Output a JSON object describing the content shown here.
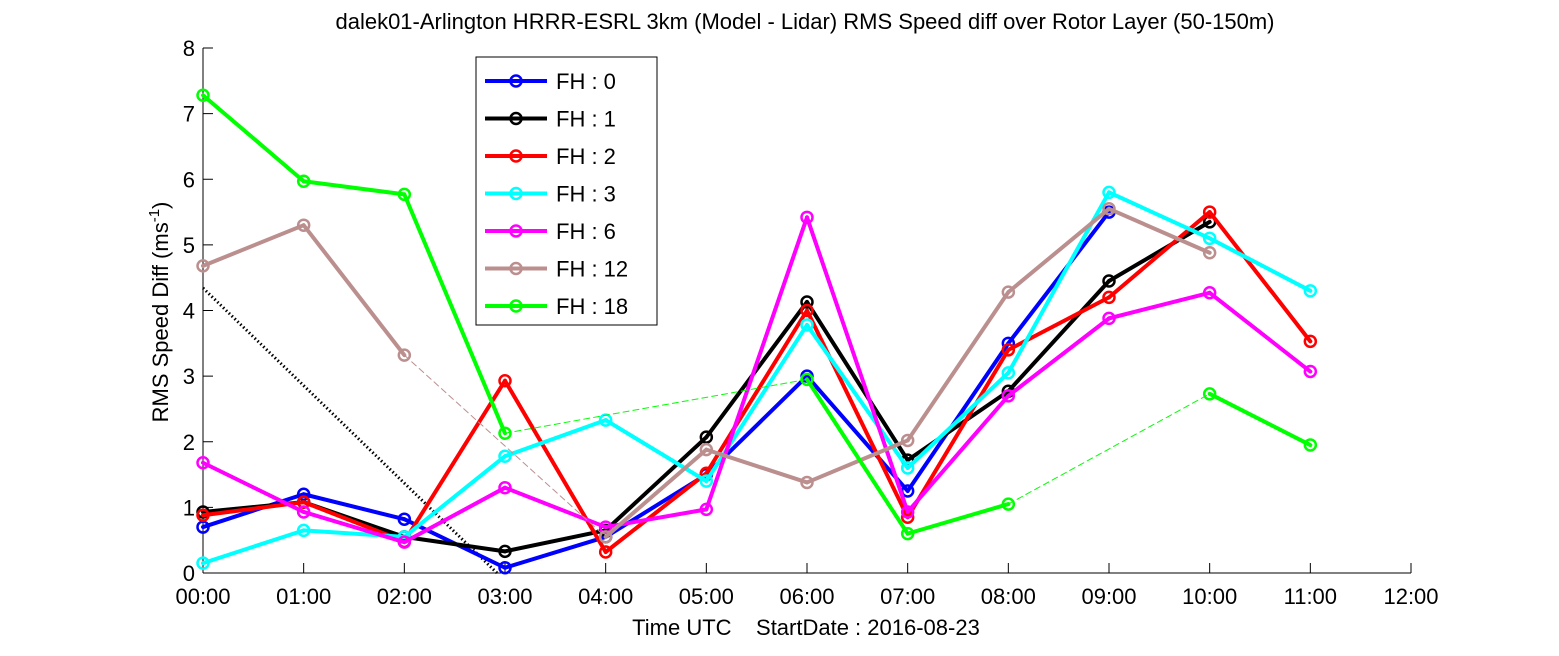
{
  "chart_data": {
    "type": "line",
    "title": "dalek01-Arlington HRRR-ESRL 3km (Model - Lidar) RMS Speed diff over Rotor Layer (50-150m)",
    "xlabel": "Time UTC    StartDate : 2016-08-23",
    "ylabel_main": "RMS Speed Diff (ms",
    "ylabel_sup": "-1",
    "ylabel_close": ")",
    "xlim": [
      0,
      12
    ],
    "ylim": [
      0,
      8
    ],
    "x_ticks": [
      0,
      1,
      2,
      3,
      4,
      5,
      6,
      7,
      8,
      9,
      10,
      11,
      12
    ],
    "x_tick_labels": [
      "00:00",
      "01:00",
      "02:00",
      "03:00",
      "04:00",
      "05:00",
      "06:00",
      "07:00",
      "08:00",
      "09:00",
      "10:00",
      "11:00",
      "12:00"
    ],
    "y_ticks": [
      0,
      1,
      2,
      3,
      4,
      5,
      6,
      7,
      8
    ],
    "y_tick_labels": [
      "0",
      "1",
      "2",
      "3",
      "4",
      "5",
      "6",
      "7",
      "8"
    ],
    "grid": false,
    "legend_position": "top-left (inside axes)",
    "series": [
      {
        "name": "FH : 0",
        "color": "#0000ff",
        "x": [
          0,
          1,
          2,
          3,
          4,
          5,
          6,
          7,
          8,
          9
        ],
        "y": [
          0.7,
          1.2,
          0.82,
          0.08,
          0.55,
          1.5,
          3.0,
          1.25,
          3.5,
          5.5
        ]
      },
      {
        "name": "FH : 1",
        "color": "#000000",
        "x": [
          0,
          1,
          2,
          3,
          4,
          5,
          6,
          7,
          8,
          9,
          10
        ],
        "y": [
          0.93,
          1.08,
          0.55,
          0.33,
          0.65,
          2.07,
          4.13,
          1.72,
          2.77,
          4.45,
          5.35
        ]
      },
      {
        "name": "FH : 2",
        "color": "#ff0000",
        "x": [
          0,
          1,
          2,
          3,
          4,
          5,
          6,
          7,
          8,
          9,
          10,
          11
        ],
        "y": [
          0.88,
          1.08,
          0.48,
          2.93,
          0.32,
          1.52,
          4.0,
          0.85,
          3.4,
          4.2,
          5.5,
          3.53
        ]
      },
      {
        "name": "FH : 3",
        "color": "#00ffff",
        "x": [
          0,
          1,
          2,
          3,
          4,
          5,
          6,
          7,
          8,
          9,
          10,
          11
        ],
        "y": [
          0.15,
          0.65,
          0.55,
          1.78,
          2.33,
          1.4,
          3.78,
          1.6,
          3.05,
          5.8,
          5.1,
          4.3
        ]
      },
      {
        "name": "FH : 6",
        "color": "#ff00ff",
        "x": [
          0,
          1,
          2,
          3,
          4,
          5,
          6,
          7,
          8,
          9,
          10,
          11
        ],
        "y": [
          1.68,
          0.93,
          0.47,
          1.3,
          0.7,
          0.97,
          5.42,
          0.93,
          2.7,
          3.88,
          4.27,
          3.07
        ]
      },
      {
        "name": "FH : 12",
        "color": "#bc8f8f",
        "x": [
          0,
          1,
          2,
          4,
          5,
          6,
          7,
          8,
          9,
          10
        ],
        "y": [
          4.68,
          5.3,
          3.32,
          0.55,
          1.88,
          1.38,
          2.02,
          4.28,
          5.55,
          4.88
        ]
      },
      {
        "name": "FH : 18",
        "color": "#00ff00",
        "x": [
          0,
          1,
          2,
          3,
          6,
          7,
          8,
          10,
          11
        ],
        "y": [
          7.28,
          5.97,
          5.77,
          2.13,
          2.95,
          0.6,
          1.05,
          2.73,
          1.95
        ]
      }
    ]
  }
}
